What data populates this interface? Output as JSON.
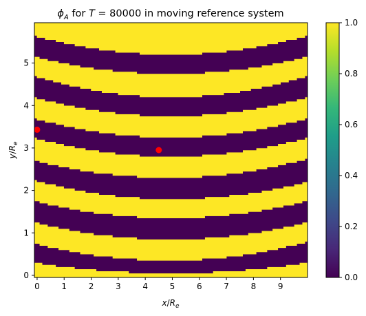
{
  "chart_data": {
    "type": "heatmap",
    "title": "ϕ_A for T = 80000 in moving reference system",
    "title_parts": {
      "phi": "ϕ",
      "phi_sub": "A",
      "mid": " for ",
      "T": "T",
      "rest": " = 80000 in moving reference system"
    },
    "xlabel": {
      "main": "x",
      "slash": "/",
      "R": "R",
      "sub": "e"
    },
    "ylabel": {
      "main": "y",
      "slash": "/",
      "R": "R",
      "sub": "e"
    },
    "xlim": [
      -0.1,
      10.0
    ],
    "ylim": [
      -0.05,
      5.95
    ],
    "x_ticks": [
      0,
      1,
      2,
      3,
      4,
      5,
      6,
      7,
      8,
      9
    ],
    "x_tick_labels": [
      "0",
      "1",
      "2",
      "3",
      "4",
      "5",
      "6",
      "7",
      "8",
      "9"
    ],
    "y_ticks": [
      0,
      1,
      2,
      3,
      4,
      5
    ],
    "y_tick_labels": [
      "0",
      "1",
      "2",
      "3",
      "4",
      "5"
    ],
    "colorbar": {
      "min": 0.0,
      "max": 1.0,
      "ticks": [
        0.0,
        0.2,
        0.4,
        0.6,
        0.8,
        1.0
      ],
      "tick_labels": [
        "0.0",
        "0.2",
        "0.4",
        "0.6",
        "0.8",
        "1.0"
      ]
    },
    "colormap": [
      "#440154",
      "#482878",
      "#3e4989",
      "#31688e",
      "#26828e",
      "#1f9e89",
      "#35b779",
      "#6ece58",
      "#b5de2b",
      "#fde725"
    ],
    "colors": {
      "low": "#440154",
      "high": "#fde725",
      "marker": "#ff0000"
    },
    "grid": false,
    "bands": {
      "description_value": "alternating 0/1 regions separated by arc-shaped boundaries",
      "boundaries_edge_center_edge": [
        [
          -0.05,
          -0.05,
          -0.05
        ],
        [
          0.3,
          0.05,
          0.3
        ],
        [
          0.75,
          0.35,
          0.8
        ],
        [
          1.25,
          0.85,
          1.25
        ],
        [
          1.75,
          1.35,
          1.75
        ],
        [
          2.25,
          1.8,
          2.2
        ],
        [
          2.7,
          2.3,
          2.75
        ],
        [
          3.25,
          2.8,
          3.25
        ],
        [
          3.7,
          3.25,
          3.7
        ],
        [
          4.2,
          3.75,
          4.2
        ],
        [
          4.7,
          4.2,
          4.7
        ],
        [
          5.15,
          4.75,
          5.15
        ],
        [
          5.65,
          5.2,
          5.65
        ],
        [
          5.95,
          5.75,
          5.95
        ]
      ],
      "values": [
        1,
        0,
        1,
        0,
        1,
        0,
        1,
        0,
        1,
        0,
        1,
        0,
        1
      ]
    },
    "points": [
      {
        "x": 0.0,
        "y": 3.43
      },
      {
        "x": 4.5,
        "y": 2.95
      }
    ]
  }
}
